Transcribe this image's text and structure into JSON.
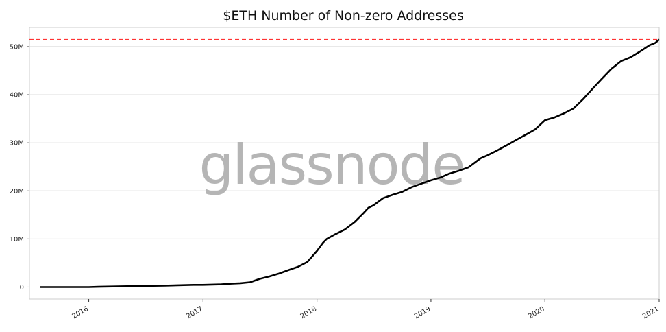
{
  "chart_data": {
    "type": "line",
    "title": "$ETH Number of Non-zero Addresses",
    "watermark": "glassnode",
    "xlabel": "",
    "ylabel": "",
    "x_ticks": [
      "2016",
      "2017",
      "2018",
      "2019",
      "2020",
      "2021"
    ],
    "y_ticks": [
      {
        "value": 0,
        "label": "0"
      },
      {
        "value": 10000000,
        "label": "10M"
      },
      {
        "value": 20000000,
        "label": "20M"
      },
      {
        "value": 30000000,
        "label": "30M"
      },
      {
        "value": 40000000,
        "label": "40M"
      },
      {
        "value": 50000000,
        "label": "50M"
      }
    ],
    "xlim": [
      "2015-06-25",
      "2021-01-01"
    ],
    "ylim": [
      -2500000,
      54000000
    ],
    "grid": "horizontal",
    "reference_line": {
      "value": 51500000,
      "color": "#ff3333",
      "style": "dashed"
    },
    "colors": {
      "line": "#000000",
      "reference": "#ff3333",
      "grid": "#d0d0d0",
      "watermark": "#b5b5b5"
    },
    "series": [
      {
        "x": [
          "2015-07-30",
          "2015-10-01",
          "2016-01-01",
          "2016-02-01",
          "2016-06-01",
          "2016-09-01",
          "2016-12-01",
          "2017-01-01",
          "2017-03-01",
          "2017-04-01",
          "2017-05-01",
          "2017-06-01",
          "2017-07-01",
          "2017-08-01",
          "2017-09-01",
          "2017-10-01",
          "2017-11-01",
          "2017-12-01",
          "2018-01-01",
          "2018-01-20",
          "2018-02-01",
          "2018-03-01",
          "2018-04-01",
          "2018-05-01",
          "2018-06-01",
          "2018-06-15",
          "2018-07-01",
          "2018-08-01",
          "2018-09-01",
          "2018-10-01",
          "2018-11-01",
          "2018-12-01",
          "2019-01-01",
          "2019-02-01",
          "2019-03-01",
          "2019-04-01",
          "2019-05-01",
          "2019-06-01",
          "2019-06-10",
          "2019-07-01",
          "2019-08-01",
          "2019-09-01",
          "2019-10-01",
          "2019-11-01",
          "2019-12-01",
          "2020-01-01",
          "2020-02-01",
          "2020-03-01",
          "2020-04-01",
          "2020-05-01",
          "2020-06-01",
          "2020-07-01",
          "2020-08-01",
          "2020-09-01",
          "2020-10-01",
          "2020-11-01",
          "2020-12-01",
          "2020-12-20",
          "2021-01-01"
        ],
        "values": [
          0,
          0,
          0,
          50000,
          200000,
          300000,
          450000,
          450000,
          550000,
          700000,
          800000,
          1000000,
          1700000,
          2200000,
          2800000,
          3500000,
          4200000,
          5200000,
          7500000,
          9200000,
          10000000,
          11000000,
          12000000,
          13500000,
          15500000,
          16500000,
          17000000,
          18500000,
          19200000,
          19800000,
          20800000,
          21500000,
          22200000,
          22800000,
          23600000,
          24200000,
          24900000,
          26400000,
          26800000,
          27400000,
          28400000,
          29500000,
          30600000,
          31700000,
          32800000,
          34700000,
          35300000,
          36100000,
          37100000,
          39000000,
          41200000,
          43300000,
          45400000,
          47000000,
          47800000,
          49000000,
          50300000,
          50800000,
          51500000
        ]
      }
    ]
  }
}
